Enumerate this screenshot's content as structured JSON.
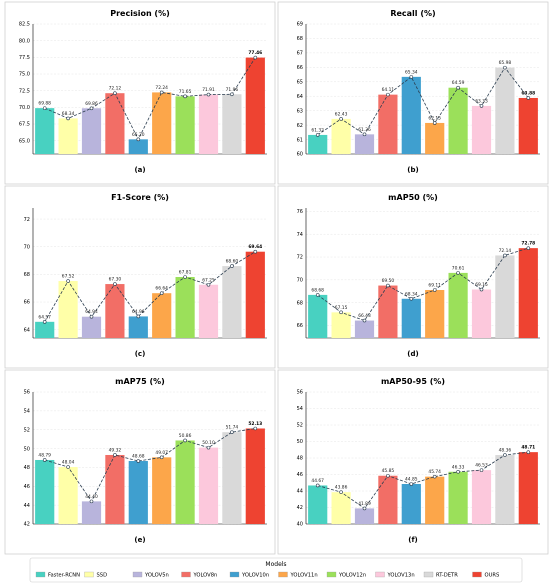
{
  "chart_data": [
    {
      "type": "bar",
      "title": "Precision (%)",
      "sublabel": "(a)",
      "ylim": [
        63,
        82.5
      ],
      "yticks": [
        "65.0",
        "67.5",
        "70.0",
        "72.5",
        "75.0",
        "77.5",
        "80.0",
        "82.5"
      ],
      "ytick_values": [
        65,
        67.5,
        70,
        72.5,
        75,
        77.5,
        80,
        82.5
      ],
      "values": [
        69.88,
        68.34,
        69.86,
        72.12,
        65.2,
        72.24,
        71.65,
        71.91,
        71.96,
        77.46
      ],
      "labels": [
        "69.88",
        "68.34",
        "69.86",
        "72.12",
        "65.20",
        "72.24",
        "71.65",
        "71.91",
        "71.96",
        "77.46"
      ]
    },
    {
      "type": "bar",
      "title": "Recall (%)",
      "sublabel": "(b)",
      "ylim": [
        60,
        69
      ],
      "yticks": [
        "60",
        "61",
        "62",
        "63",
        "64",
        "65",
        "66",
        "67",
        "68",
        "69"
      ],
      "ytick_values": [
        60,
        61,
        62,
        63,
        64,
        65,
        66,
        67,
        68,
        69
      ],
      "values": [
        61.32,
        62.43,
        61.36,
        64.11,
        65.34,
        62.15,
        64.59,
        63.33,
        65.98,
        63.88
      ],
      "labels": [
        "61.32",
        "62.43",
        "61.36",
        "64.11",
        "65.34",
        "62.15",
        "64.59",
        "63.33",
        "65.98",
        "63.88"
      ]
    },
    {
      "type": "bar",
      "title": "F1-Score (%)",
      "sublabel": "(c)",
      "ylim": [
        63.4,
        72.8
      ],
      "yticks": [
        "64",
        "66",
        "68",
        "70",
        "72"
      ],
      "ytick_values": [
        64,
        66,
        68,
        70,
        72
      ],
      "values": [
        64.57,
        67.52,
        64.94,
        67.3,
        64.96,
        66.64,
        67.81,
        67.25,
        68.6,
        69.64
      ],
      "labels": [
        "64.57",
        "67.52",
        "64.94",
        "67.30",
        "64.96",
        "66.64",
        "67.81",
        "67.25",
        "68.60",
        "69.64"
      ]
    },
    {
      "type": "bar",
      "title": "mAP50 (%)",
      "sublabel": "(d)",
      "ylim": [
        64.9,
        76.3
      ],
      "yticks": [
        "66",
        "68",
        "70",
        "72",
        "74",
        "76"
      ],
      "ytick_values": [
        66,
        68,
        70,
        72,
        74,
        76
      ],
      "values": [
        68.68,
        67.15,
        66.43,
        69.5,
        68.34,
        69.11,
        70.61,
        69.15,
        72.14,
        72.78
      ],
      "labels": [
        "68.68",
        "67.15",
        "66.43",
        "69.50",
        "68.34",
        "69.11",
        "70.61",
        "69.15",
        "72.14",
        "72.78"
      ]
    },
    {
      "type": "bar",
      "title": "mAP75 (%)",
      "sublabel": "(e)",
      "ylim": [
        42,
        56
      ],
      "yticks": [
        "42",
        "44",
        "46",
        "48",
        "50",
        "52",
        "54",
        "56"
      ],
      "ytick_values": [
        42,
        44,
        46,
        48,
        50,
        52,
        54,
        56
      ],
      "values": [
        48.79,
        48.04,
        44.4,
        49.32,
        48.68,
        49.07,
        50.86,
        50.1,
        51.74,
        52.13
      ],
      "labels": [
        "48.79",
        "48.04",
        "44.40",
        "49.32",
        "48.68",
        "49.07",
        "50.86",
        "50.10",
        "51.74",
        "52.13"
      ]
    },
    {
      "type": "bar",
      "title": "mAP50-95 (%)",
      "sublabel": "(f)",
      "ylim": [
        40,
        56
      ],
      "yticks": [
        "40",
        "42",
        "44",
        "46",
        "48",
        "50",
        "52",
        "54",
        "56"
      ],
      "ytick_values": [
        40,
        42,
        44,
        46,
        48,
        50,
        52,
        54,
        56
      ],
      "values": [
        44.67,
        43.86,
        41.89,
        45.85,
        44.85,
        45.74,
        46.33,
        46.53,
        48.36,
        48.71
      ],
      "labels": [
        "44.67",
        "43.86",
        "41.89",
        "45.85",
        "44.85",
        "45.74",
        "46.33",
        "46.53",
        "48.36",
        "48.71"
      ]
    }
  ],
  "models": [
    "Faster-RCNN",
    "SSD",
    "YOLOV5n",
    "YOLOV8n",
    "YOLOV10n",
    "YOLOV11n",
    "YOLOV12n",
    "YOLOV13n",
    "RT-DETR",
    "OURS"
  ],
  "colors": [
    "#48d1c1",
    "#ffffa8",
    "#b8b4dc",
    "#f26e66",
    "#3f9fcf",
    "#fca64a",
    "#9be05a",
    "#fcc8dc",
    "#d9d9d9",
    "#ee4331"
  ],
  "legend": {
    "title": "Models"
  }
}
